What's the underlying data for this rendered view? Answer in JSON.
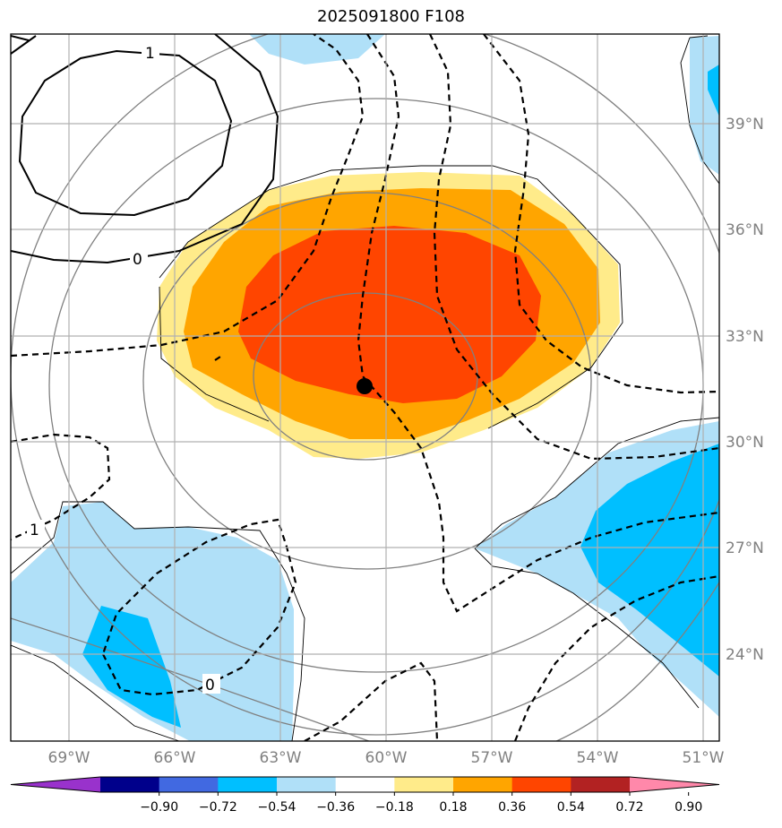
{
  "title": "2025091800 F108",
  "lat_labels": [
    "39°N",
    "36°N",
    "33°N",
    "30°N",
    "27°N",
    "24°N"
  ],
  "lon_labels": [
    "69°W",
    "66°W",
    "63°W",
    "60°W",
    "57°W",
    "54°W",
    "51°W"
  ],
  "colorbar": {
    "ticks": [
      "−0.90",
      "−0.72",
      "−0.54",
      "−0.36",
      "−0.18",
      "0.18",
      "0.36",
      "0.54",
      "0.72",
      "0.90"
    ],
    "colors": [
      "#9932cc",
      "#00008b",
      "#4169e1",
      "#00bfff",
      "#b0e0f8",
      "#ffffff",
      "#ffeb8a",
      "#ffa500",
      "#ff4500",
      "#b22222",
      "#ff88aa"
    ]
  },
  "contour_labels": [
    "1",
    "0",
    "1",
    "0"
  ],
  "storm_center": {
    "lat": "31.5",
    "lon": "-60.6"
  }
}
